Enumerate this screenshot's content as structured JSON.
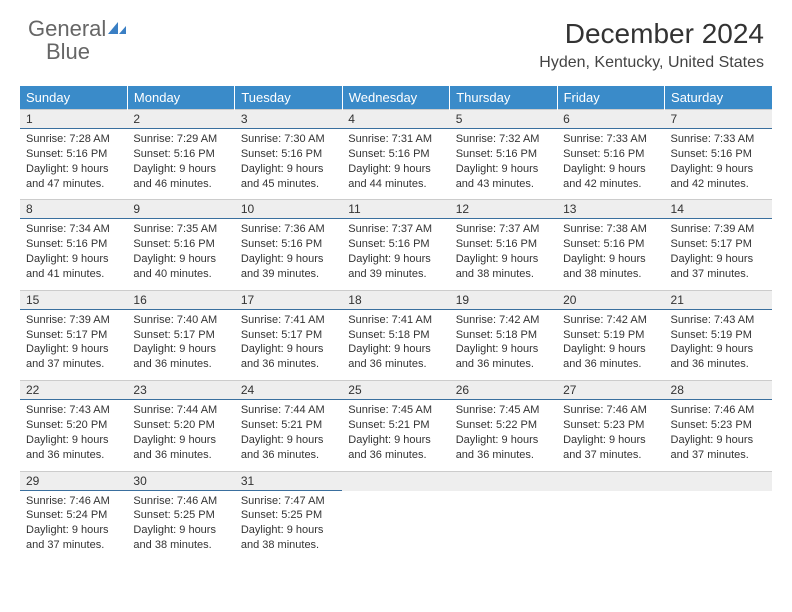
{
  "logo": {
    "text_gray": "General",
    "text_blue": "Blue",
    "icon_color": "#3a7fc4"
  },
  "header": {
    "month_title": "December 2024",
    "location": "Hyden, Kentucky, United States"
  },
  "colors": {
    "header_bg": "#3a8bc9",
    "header_text": "#ffffff",
    "daynum_bg": "#eeeeee",
    "daynum_border_bottom": "#3a6f9e",
    "body_text": "#333333",
    "logo_gray": "#666666",
    "logo_blue": "#3a7fc4"
  },
  "typography": {
    "month_title_size": 28,
    "location_size": 16,
    "weekday_size": 13,
    "daynum_size": 12,
    "cell_text_size": 11
  },
  "weekdays": [
    "Sunday",
    "Monday",
    "Tuesday",
    "Wednesday",
    "Thursday",
    "Friday",
    "Saturday"
  ],
  "weeks": [
    {
      "nums": [
        "1",
        "2",
        "3",
        "4",
        "5",
        "6",
        "7"
      ],
      "data": [
        {
          "sunrise": "Sunrise: 7:28 AM",
          "sunset": "Sunset: 5:16 PM",
          "day1": "Daylight: 9 hours",
          "day2": "and 47 minutes."
        },
        {
          "sunrise": "Sunrise: 7:29 AM",
          "sunset": "Sunset: 5:16 PM",
          "day1": "Daylight: 9 hours",
          "day2": "and 46 minutes."
        },
        {
          "sunrise": "Sunrise: 7:30 AM",
          "sunset": "Sunset: 5:16 PM",
          "day1": "Daylight: 9 hours",
          "day2": "and 45 minutes."
        },
        {
          "sunrise": "Sunrise: 7:31 AM",
          "sunset": "Sunset: 5:16 PM",
          "day1": "Daylight: 9 hours",
          "day2": "and 44 minutes."
        },
        {
          "sunrise": "Sunrise: 7:32 AM",
          "sunset": "Sunset: 5:16 PM",
          "day1": "Daylight: 9 hours",
          "day2": "and 43 minutes."
        },
        {
          "sunrise": "Sunrise: 7:33 AM",
          "sunset": "Sunset: 5:16 PM",
          "day1": "Daylight: 9 hours",
          "day2": "and 42 minutes."
        },
        {
          "sunrise": "Sunrise: 7:33 AM",
          "sunset": "Sunset: 5:16 PM",
          "day1": "Daylight: 9 hours",
          "day2": "and 42 minutes."
        }
      ]
    },
    {
      "nums": [
        "8",
        "9",
        "10",
        "11",
        "12",
        "13",
        "14"
      ],
      "data": [
        {
          "sunrise": "Sunrise: 7:34 AM",
          "sunset": "Sunset: 5:16 PM",
          "day1": "Daylight: 9 hours",
          "day2": "and 41 minutes."
        },
        {
          "sunrise": "Sunrise: 7:35 AM",
          "sunset": "Sunset: 5:16 PM",
          "day1": "Daylight: 9 hours",
          "day2": "and 40 minutes."
        },
        {
          "sunrise": "Sunrise: 7:36 AM",
          "sunset": "Sunset: 5:16 PM",
          "day1": "Daylight: 9 hours",
          "day2": "and 39 minutes."
        },
        {
          "sunrise": "Sunrise: 7:37 AM",
          "sunset": "Sunset: 5:16 PM",
          "day1": "Daylight: 9 hours",
          "day2": "and 39 minutes."
        },
        {
          "sunrise": "Sunrise: 7:37 AM",
          "sunset": "Sunset: 5:16 PM",
          "day1": "Daylight: 9 hours",
          "day2": "and 38 minutes."
        },
        {
          "sunrise": "Sunrise: 7:38 AM",
          "sunset": "Sunset: 5:16 PM",
          "day1": "Daylight: 9 hours",
          "day2": "and 38 minutes."
        },
        {
          "sunrise": "Sunrise: 7:39 AM",
          "sunset": "Sunset: 5:17 PM",
          "day1": "Daylight: 9 hours",
          "day2": "and 37 minutes."
        }
      ]
    },
    {
      "nums": [
        "15",
        "16",
        "17",
        "18",
        "19",
        "20",
        "21"
      ],
      "data": [
        {
          "sunrise": "Sunrise: 7:39 AM",
          "sunset": "Sunset: 5:17 PM",
          "day1": "Daylight: 9 hours",
          "day2": "and 37 minutes."
        },
        {
          "sunrise": "Sunrise: 7:40 AM",
          "sunset": "Sunset: 5:17 PM",
          "day1": "Daylight: 9 hours",
          "day2": "and 36 minutes."
        },
        {
          "sunrise": "Sunrise: 7:41 AM",
          "sunset": "Sunset: 5:17 PM",
          "day1": "Daylight: 9 hours",
          "day2": "and 36 minutes."
        },
        {
          "sunrise": "Sunrise: 7:41 AM",
          "sunset": "Sunset: 5:18 PM",
          "day1": "Daylight: 9 hours",
          "day2": "and 36 minutes."
        },
        {
          "sunrise": "Sunrise: 7:42 AM",
          "sunset": "Sunset: 5:18 PM",
          "day1": "Daylight: 9 hours",
          "day2": "and 36 minutes."
        },
        {
          "sunrise": "Sunrise: 7:42 AM",
          "sunset": "Sunset: 5:19 PM",
          "day1": "Daylight: 9 hours",
          "day2": "and 36 minutes."
        },
        {
          "sunrise": "Sunrise: 7:43 AM",
          "sunset": "Sunset: 5:19 PM",
          "day1": "Daylight: 9 hours",
          "day2": "and 36 minutes."
        }
      ]
    },
    {
      "nums": [
        "22",
        "23",
        "24",
        "25",
        "26",
        "27",
        "28"
      ],
      "data": [
        {
          "sunrise": "Sunrise: 7:43 AM",
          "sunset": "Sunset: 5:20 PM",
          "day1": "Daylight: 9 hours",
          "day2": "and 36 minutes."
        },
        {
          "sunrise": "Sunrise: 7:44 AM",
          "sunset": "Sunset: 5:20 PM",
          "day1": "Daylight: 9 hours",
          "day2": "and 36 minutes."
        },
        {
          "sunrise": "Sunrise: 7:44 AM",
          "sunset": "Sunset: 5:21 PM",
          "day1": "Daylight: 9 hours",
          "day2": "and 36 minutes."
        },
        {
          "sunrise": "Sunrise: 7:45 AM",
          "sunset": "Sunset: 5:21 PM",
          "day1": "Daylight: 9 hours",
          "day2": "and 36 minutes."
        },
        {
          "sunrise": "Sunrise: 7:45 AM",
          "sunset": "Sunset: 5:22 PM",
          "day1": "Daylight: 9 hours",
          "day2": "and 36 minutes."
        },
        {
          "sunrise": "Sunrise: 7:46 AM",
          "sunset": "Sunset: 5:23 PM",
          "day1": "Daylight: 9 hours",
          "day2": "and 37 minutes."
        },
        {
          "sunrise": "Sunrise: 7:46 AM",
          "sunset": "Sunset: 5:23 PM",
          "day1": "Daylight: 9 hours",
          "day2": "and 37 minutes."
        }
      ]
    },
    {
      "nums": [
        "29",
        "30",
        "31",
        "",
        "",
        "",
        ""
      ],
      "data": [
        {
          "sunrise": "Sunrise: 7:46 AM",
          "sunset": "Sunset: 5:24 PM",
          "day1": "Daylight: 9 hours",
          "day2": "and 37 minutes."
        },
        {
          "sunrise": "Sunrise: 7:46 AM",
          "sunset": "Sunset: 5:25 PM",
          "day1": "Daylight: 9 hours",
          "day2": "and 38 minutes."
        },
        {
          "sunrise": "Sunrise: 7:47 AM",
          "sunset": "Sunset: 5:25 PM",
          "day1": "Daylight: 9 hours",
          "day2": "and 38 minutes."
        },
        null,
        null,
        null,
        null
      ]
    }
  ]
}
